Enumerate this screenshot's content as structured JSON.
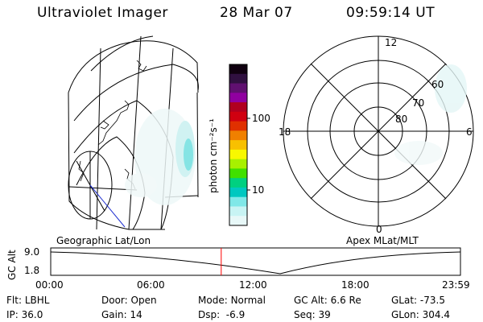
{
  "header": {
    "title": "Ultraviolet Imager",
    "date": "28 Mar 07",
    "time": "09:59:14 UT"
  },
  "colorbar": {
    "unit_label": "photon cm⁻²s⁻¹",
    "ticks": [
      "100",
      "10"
    ],
    "colors": [
      "#100010",
      "#301040",
      "#601070",
      "#9000a0",
      "#b00020",
      "#d00010",
      "#e03000",
      "#f08000",
      "#f8c000",
      "#f8f800",
      "#a8f000",
      "#40e000",
      "#00d080",
      "#00c8c0",
      "#80e8e8",
      "#c8f4f4",
      "#e8f8f8"
    ]
  },
  "left_map": {
    "label": "Geographic Lat/Lon"
  },
  "polar_plot": {
    "label": "Apex MLat/MLT",
    "mlt_labels": {
      "top": "12",
      "right": "6",
      "bottom": "0",
      "left": "18"
    },
    "lat_labels": [
      "60",
      "70",
      "80"
    ]
  },
  "altitude_plot": {
    "ylabel": "GC Alt",
    "y_ticks": [
      "9.0",
      "1.8"
    ],
    "x_ticks": [
      "00:00",
      "06:00",
      "12:00",
      "18:00",
      "23:59"
    ],
    "current_time_marker_hours": 9.987,
    "marker_color": "#ff0000"
  },
  "footer": {
    "row1": [
      {
        "label": "Flt:",
        "value": "LBHL"
      },
      {
        "label": "Door:",
        "value": "Open"
      },
      {
        "label": "Mode:",
        "value": "Normal"
      },
      {
        "label": "GC Alt:",
        "value": "6.6 Re"
      },
      {
        "label": "GLat:",
        "value": "-73.5"
      }
    ],
    "row2": [
      {
        "label": "IP:",
        "value": "36.0"
      },
      {
        "label": "Gain:",
        "value": "14"
      },
      {
        "label": "Dsp:",
        "value": "  -6.9"
      },
      {
        "label": "Seq:",
        "value": "39"
      },
      {
        "label": "GLon:",
        "value": "304.4"
      }
    ]
  }
}
